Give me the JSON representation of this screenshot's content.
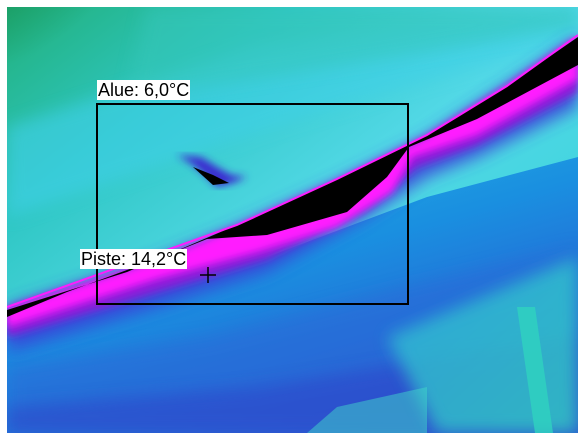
{
  "measurement_area": {
    "label": "Alue: 6,0°C"
  },
  "spot_measurement": {
    "label": "Piste: 14,2°C"
  },
  "colors": {
    "palette": [
      "#1fa36a",
      "#22c9c9",
      "#5fdde8",
      "#1aa0e0",
      "#2b63d8",
      "#3a2bd0",
      "#8a1fd8",
      "#ff1cff",
      "#000000"
    ],
    "overlay_line": "#000000",
    "label_background": "#ffffff"
  }
}
